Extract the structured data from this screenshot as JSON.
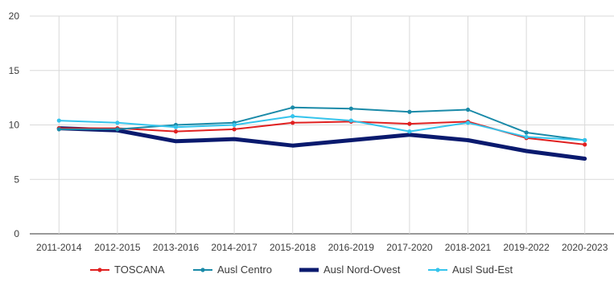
{
  "chart_data": {
    "type": "line",
    "categories": [
      "2011-2014",
      "2012-2015",
      "2013-2016",
      "2014-2017",
      "2015-2018",
      "2016-2019",
      "2017-2020",
      "2018-2021",
      "2019-2022",
      "2020-2023"
    ],
    "ylim": [
      0,
      20
    ],
    "yticks": [
      "0",
      "5",
      "10",
      "15",
      "20"
    ],
    "grid": true,
    "legend_position": "bottom",
    "series": [
      {
        "name": "TOSCANA",
        "color": "#e02020",
        "values": [
          9.7,
          9.7,
          9.4,
          9.6,
          10.2,
          10.3,
          10.1,
          10.3,
          8.8,
          8.2
        ]
      },
      {
        "name": "Ausl Centro",
        "color": "#1a8aa8",
        "values": [
          9.6,
          9.6,
          10.0,
          10.2,
          11.6,
          11.5,
          11.2,
          11.4,
          9.3,
          8.6
        ]
      },
      {
        "name": "Ausl Nord-Ovest",
        "color": "#0a1a6e",
        "values": [
          9.7,
          9.5,
          8.5,
          8.7,
          8.1,
          8.6,
          9.1,
          8.6,
          7.6,
          6.9
        ]
      },
      {
        "name": "Ausl Sud-Est",
        "color": "#35c4ec",
        "values": [
          10.4,
          10.2,
          9.8,
          10.0,
          10.8,
          10.4,
          9.4,
          10.2,
          8.9,
          8.6
        ]
      }
    ]
  }
}
